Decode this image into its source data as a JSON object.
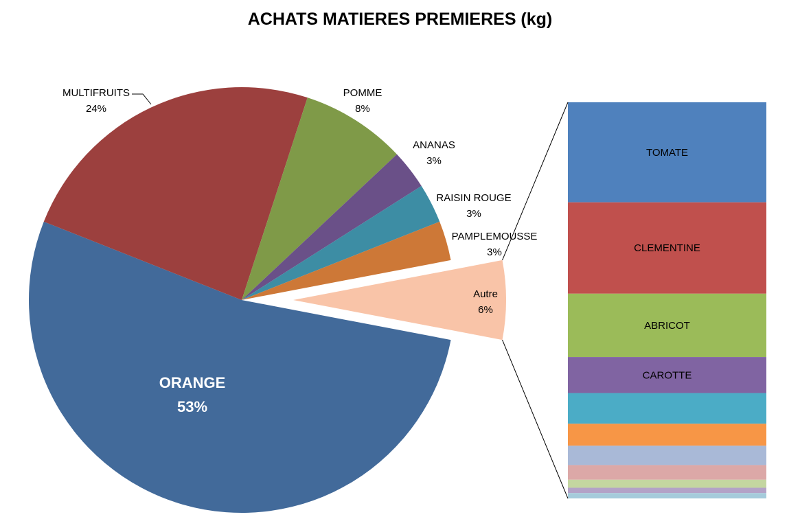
{
  "chart_data": {
    "type": "pie",
    "subtype": "bar-of-pie",
    "title": "ACHATS MATIERES PREMIERES (kg)",
    "slices": [
      {
        "label": "ORANGE",
        "pct_label": "53%",
        "value": 53,
        "color": "#426A9A"
      },
      {
        "label": "MULTIFRUITS",
        "pct_label": "24%",
        "value": 24,
        "color": "#9C403E"
      },
      {
        "label": "POMME",
        "pct_label": "8%",
        "value": 8,
        "color": "#7F9A48"
      },
      {
        "label": "ANANAS",
        "pct_label": "3%",
        "value": 3,
        "color": "#6A5088"
      },
      {
        "label": "RAISIN ROUGE",
        "pct_label": "3%",
        "value": 3,
        "color": "#3D8DA4"
      },
      {
        "label": "PAMPLEMOUSSE",
        "pct_label": "3%",
        "value": 3,
        "color": "#CD7837"
      },
      {
        "label": "Autre",
        "pct_label": "6%",
        "value": 6,
        "color": "#F9C4A8",
        "exploded": true
      }
    ],
    "bar_breakdown": [
      {
        "label": "TOMATE",
        "value": 1.5,
        "color": "#4F81BD"
      },
      {
        "label": "CLEMENTINE",
        "value": 1.37,
        "color": "#C0504D"
      },
      {
        "label": "ABRICOT",
        "value": 0.95,
        "color": "#9BBB59"
      },
      {
        "label": "CAROTTE",
        "value": 0.54,
        "color": "#8064A2"
      },
      {
        "label": "",
        "value": 0.46,
        "color": "#4BACC6"
      },
      {
        "label": "",
        "value": 0.33,
        "color": "#F79646"
      },
      {
        "label": "",
        "value": 0.29,
        "color": "#A9B9D7"
      },
      {
        "label": "",
        "value": 0.22,
        "color": "#DCA8A7"
      },
      {
        "label": "",
        "value": 0.12,
        "color": "#C4D6A0"
      },
      {
        "label": "",
        "value": 0.08,
        "color": "#B3A2C7"
      },
      {
        "label": "",
        "value": 0.08,
        "color": "#A5CBDB"
      }
    ]
  }
}
